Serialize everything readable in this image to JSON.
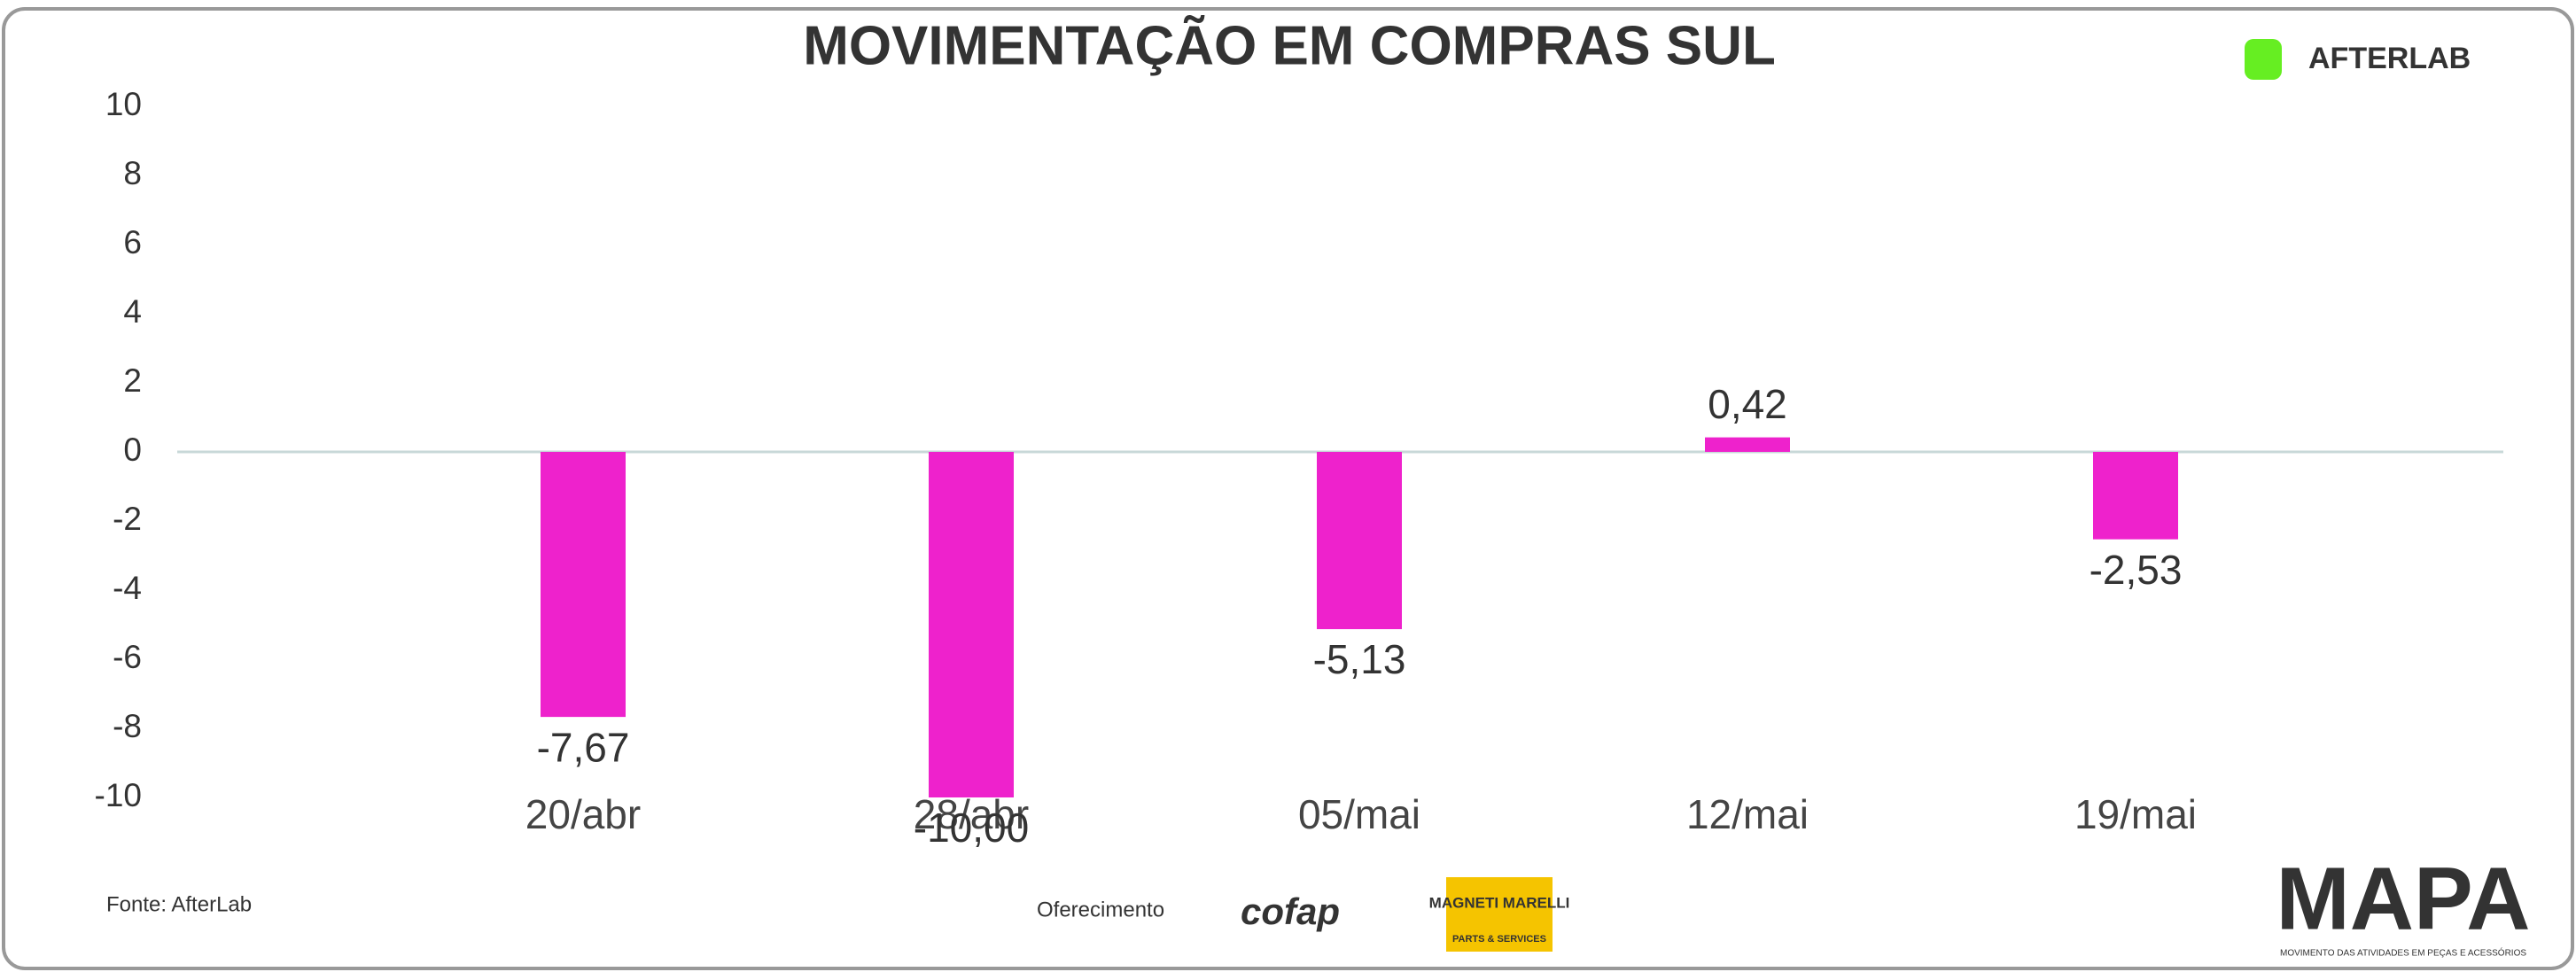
{
  "chart_data": {
    "type": "bar",
    "title": "MOVIMENTAÇÃO EM COMPRAS SUL",
    "categories": [
      "20/abr",
      "28/abr",
      "05/mai",
      "12/mai",
      "19/mai"
    ],
    "values": [
      -7.67,
      -10.0,
      -5.13,
      0.42,
      -2.53
    ],
    "value_labels": [
      "-7,67",
      "-10,00",
      "-5,13",
      "0,42",
      "-2,53"
    ],
    "color": "#ee22cc",
    "ylim": [
      -10,
      10
    ],
    "yticks": [
      -10,
      -8,
      -6,
      -4,
      -2,
      0,
      2,
      4,
      6,
      8,
      10
    ],
    "grid": false
  },
  "footer": {
    "source": "Fonte: AfterLab",
    "sponsor": "Oferecimento",
    "logo_cofap": "cofap",
    "logo_magneti": "MAGNETI MARELLI",
    "logo_magneti_sub": "PARTS & SERVICES",
    "brand": "AFTERLAB",
    "mapa": "MAPA",
    "mapa_sub": "MOVIMENTO DAS ATIVIDADES EM PEÇAS E ACESSÓRIOS"
  }
}
